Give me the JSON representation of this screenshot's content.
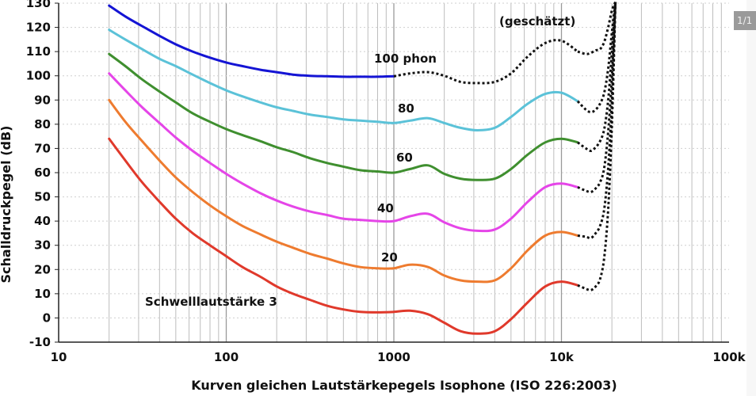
{
  "page_indicator": "1/1",
  "chart_data": {
    "type": "line",
    "title": "",
    "xlabel": "Kurven gleichen Lautstärkepegels Isophone (ISO 226:2003)",
    "ylabel": "Schalldruckpegel (dB)",
    "x_scale": "log",
    "xlim": [
      10,
      100000
    ],
    "ylim": [
      -10,
      130
    ],
    "x_ticks": [
      10,
      100,
      1000,
      10000,
      100000
    ],
    "x_tick_labels": [
      "10",
      "100",
      "1000",
      "10k",
      "100k"
    ],
    "y_ticks": [
      -10,
      0,
      10,
      20,
      30,
      40,
      50,
      60,
      70,
      80,
      90,
      100,
      110,
      120,
      130
    ],
    "y_tick_labels": [
      "-10",
      "0",
      "10",
      "20",
      "30",
      "40",
      "50",
      "60",
      "70",
      "80",
      "90",
      "100",
      "110",
      "120",
      "130"
    ],
    "grid": "vertical minor and major lines, horizontal dotted",
    "annotation": "(geschätzt)",
    "series": [
      {
        "name": "Schwelllautstärke 3",
        "color": "#e0392b",
        "x": [
          20,
          25,
          31.5,
          40,
          50,
          63,
          80,
          100,
          125,
          160,
          200,
          250,
          315,
          400,
          500,
          630,
          800,
          1000,
          1250,
          1600,
          2000,
          2500,
          3150,
          4000,
          5000,
          6300,
          8000,
          10000,
          12500
        ],
        "y": [
          74,
          65,
          56,
          48,
          41,
          35,
          30,
          25.5,
          21,
          17,
          13,
          10,
          7.5,
          5,
          3.5,
          2.5,
          2.3,
          2.5,
          3,
          1.5,
          -2,
          -5.5,
          -6.5,
          -5.5,
          -0.5,
          6.5,
          13,
          15,
          13.5
        ],
        "dashed_from_index": -1
      },
      {
        "name": "20",
        "color": "#ee7b2f",
        "x": [
          20,
          25,
          31.5,
          40,
          50,
          63,
          80,
          100,
          125,
          160,
          200,
          250,
          315,
          400,
          500,
          630,
          800,
          1000,
          1250,
          1600,
          2000,
          2500,
          3150,
          4000,
          5000,
          6300,
          8000,
          10000,
          12500
        ],
        "y": [
          90,
          81,
          73,
          65,
          58,
          52,
          46.5,
          42,
          38,
          34.5,
          31.5,
          29,
          26.5,
          24.5,
          22.5,
          21,
          20.5,
          20.5,
          22,
          21,
          17.5,
          15.5,
          15,
          15.5,
          20.5,
          28,
          34,
          35.5,
          34
        ],
        "dashed_from_index": -1
      },
      {
        "name": "40",
        "color": "#e545e8",
        "x": [
          20,
          25,
          31.5,
          40,
          50,
          63,
          80,
          100,
          125,
          160,
          200,
          250,
          315,
          400,
          500,
          630,
          800,
          1000,
          1250,
          1600,
          2000,
          2500,
          3150,
          4000,
          5000,
          6300,
          8000,
          10000,
          12500
        ],
        "y": [
          101,
          94,
          87,
          80.5,
          74.5,
          69,
          64,
          59.5,
          55.5,
          51.5,
          48.5,
          46,
          44,
          42.5,
          41,
          40.5,
          40,
          40,
          42,
          43,
          39.5,
          37,
          36,
          36.5,
          41,
          48,
          54,
          55.5,
          54
        ],
        "dashed_from_index": -1
      },
      {
        "name": "60",
        "color": "#3f8f2f",
        "x": [
          20,
          25,
          31.5,
          40,
          50,
          63,
          80,
          100,
          125,
          160,
          200,
          250,
          315,
          400,
          500,
          630,
          800,
          1000,
          1250,
          1600,
          2000,
          2500,
          3150,
          4000,
          5000,
          6300,
          8000,
          10000,
          12500
        ],
        "y": [
          109,
          104,
          98.5,
          93.5,
          89,
          84.5,
          81,
          78,
          75.5,
          73,
          70.5,
          68.5,
          66,
          64,
          62.5,
          61,
          60.5,
          60,
          61.5,
          63,
          59.5,
          57.5,
          57,
          57.5,
          61.5,
          67.5,
          72.5,
          74,
          72.5
        ],
        "dashed_from_index": -1
      },
      {
        "name": "80",
        "color": "#5bc2d8",
        "x": [
          20,
          25,
          31.5,
          40,
          50,
          63,
          80,
          100,
          125,
          160,
          200,
          250,
          315,
          400,
          500,
          630,
          800,
          1000,
          1250,
          1600,
          2000,
          2500,
          3150,
          4000,
          5000,
          6300,
          8000,
          10000,
          12500
        ],
        "y": [
          119,
          115,
          111,
          107,
          104,
          100.5,
          97,
          94,
          91.5,
          89,
          87,
          85.5,
          84,
          83,
          82,
          81.5,
          81,
          80.5,
          81.5,
          82.5,
          80.5,
          78.5,
          77.5,
          78.5,
          83,
          88.5,
          92.5,
          93,
          89.5
        ],
        "dashed_from_index": -1
      },
      {
        "name": "100 phon",
        "color": "#1414d4",
        "x": [
          20,
          25,
          31.5,
          40,
          50,
          63,
          80,
          100,
          125,
          160,
          200,
          250,
          315,
          400,
          500,
          630,
          800,
          1000,
          1250,
          1600,
          2000,
          2500,
          3150,
          4000,
          5000,
          6300,
          8000,
          10000,
          12500
        ],
        "y": [
          129,
          124.5,
          120.5,
          116.5,
          113,
          110,
          107.5,
          105.5,
          104,
          102.5,
          101.5,
          100.5,
          100,
          99.8,
          99.6,
          99.6,
          99.6,
          99.8,
          101,
          101.5,
          100,
          97.5,
          97,
          97.5,
          101,
          108,
          113.5,
          114.5,
          110
        ],
        "dashed_from_index": 17
      }
    ],
    "estimated_extensions": [
      {
        "series": "Schwelllautstärke 3",
        "x": [
          12500,
          14000,
          15000,
          16000,
          17000,
          18000,
          19000,
          20000,
          21000
        ],
        "y": [
          13.5,
          12,
          11.5,
          13,
          16,
          25,
          45,
          80,
          132
        ]
      },
      {
        "series": "20",
        "x": [
          12500,
          14000,
          15000,
          16000,
          17000,
          18000,
          19000,
          20000,
          21000
        ],
        "y": [
          34,
          33.5,
          33,
          35,
          38,
          45,
          62,
          90,
          132
        ]
      },
      {
        "series": "40",
        "x": [
          12500,
          14000,
          15000,
          16000,
          17000,
          18000,
          19000,
          20000,
          21000
        ],
        "y": [
          54,
          52.5,
          52,
          53.5,
          56,
          62,
          77,
          100,
          132
        ]
      },
      {
        "series": "60",
        "x": [
          12500,
          14000,
          15000,
          16000,
          17000,
          18000,
          19000,
          20000,
          21000
        ],
        "y": [
          72.5,
          70,
          69,
          70.5,
          73,
          78,
          90,
          110,
          132
        ]
      },
      {
        "series": "80",
        "x": [
          12500,
          14000,
          15000,
          16000,
          17000,
          18000,
          19000,
          20000,
          21000
        ],
        "y": [
          89.5,
          86,
          85,
          86,
          88.5,
          93,
          103,
          118,
          132
        ]
      },
      {
        "series": "100 phon",
        "x": [
          12500,
          14000,
          15000,
          16000,
          17000,
          18000,
          19000,
          20000,
          21000
        ],
        "y": [
          110,
          109,
          109.5,
          110.5,
          111,
          114,
          120,
          127,
          132
        ]
      }
    ]
  }
}
